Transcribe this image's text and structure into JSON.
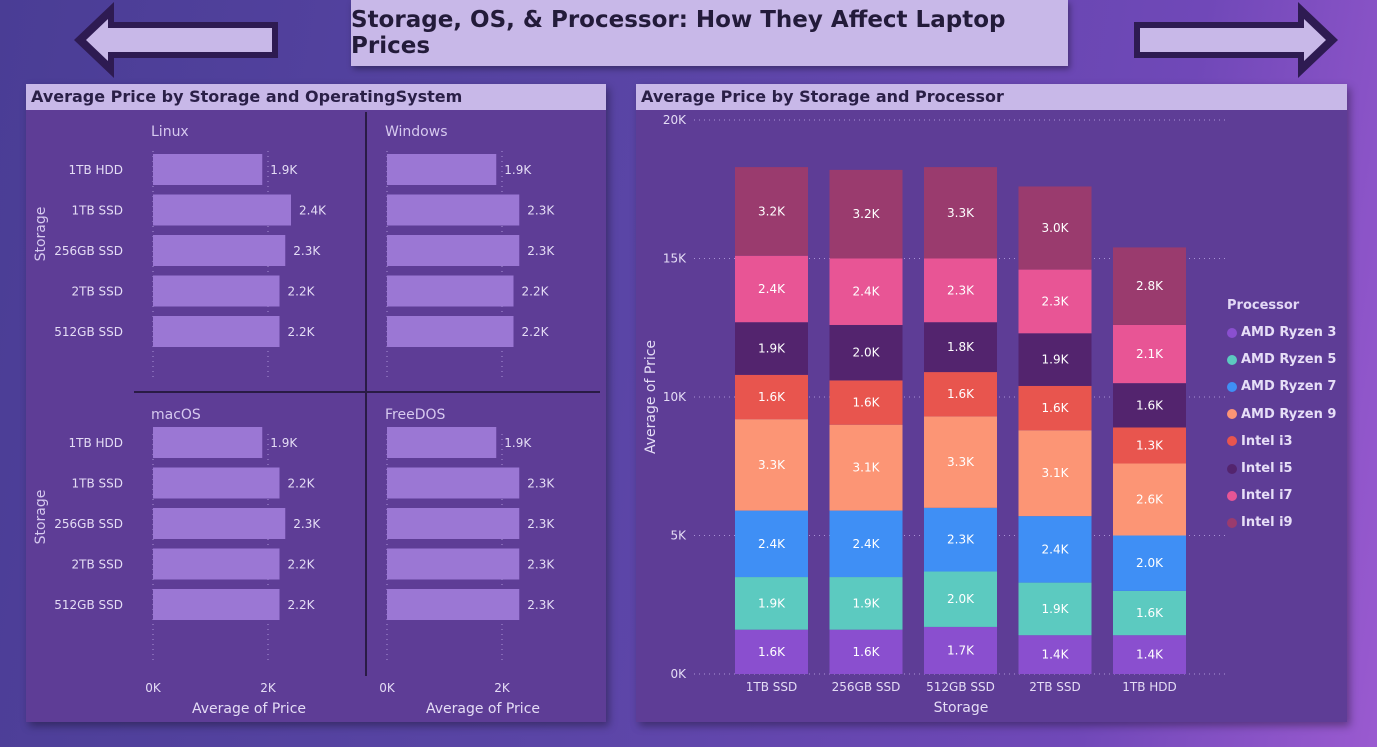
{
  "page": {
    "title": "Storage, OS, & Processor: How They Affect Laptop Prices",
    "nav": {
      "back_icon": "arrow-left-icon",
      "forward_icon": "arrow-right-icon"
    }
  },
  "colors": {
    "bar": "#9b77d4",
    "AMD Ryzen 3": "#8a4fcf",
    "AMD Ryzen 5": "#5ccac0",
    "AMD Ryzen 7": "#3f8ff5",
    "AMD Ryzen 9": "#fc9575",
    "Intel i3": "#e8554e",
    "Intel i5": "#53246e",
    "Intel i7": "#e85595",
    "Intel i9": "#9a3b6e"
  },
  "chart_data": [
    {
      "type": "bar",
      "orientation": "horizontal",
      "title": "Average Price by Storage and OperatingSystem",
      "xlabel": "Average of Price",
      "ylabel": "Storage",
      "xlim": [
        0,
        2600
      ],
      "xticks": [
        "0K",
        "2K"
      ],
      "grid": true,
      "panels": [
        {
          "name": "Linux",
          "categories": [
            "1TB HDD",
            "1TB SSD",
            "256GB SSD",
            "2TB SSD",
            "512GB SSD"
          ],
          "values": [
            1900,
            2400,
            2300,
            2200,
            2200
          ],
          "labels": [
            "1.9K",
            "2.4K",
            "2.3K",
            "2.2K",
            "2.2K"
          ]
        },
        {
          "name": "Windows",
          "categories": [
            "1TB HDD",
            "1TB SSD",
            "256GB SSD",
            "2TB SSD",
            "512GB SSD"
          ],
          "values": [
            1900,
            2300,
            2300,
            2200,
            2200
          ],
          "labels": [
            "1.9K",
            "2.3K",
            "2.3K",
            "2.2K",
            "2.2K"
          ]
        },
        {
          "name": "macOS",
          "categories": [
            "1TB HDD",
            "1TB SSD",
            "256GB SSD",
            "2TB SSD",
            "512GB SSD"
          ],
          "values": [
            1900,
            2200,
            2300,
            2200,
            2200
          ],
          "labels": [
            "1.9K",
            "2.2K",
            "2.3K",
            "2.2K",
            "2.2K"
          ]
        },
        {
          "name": "FreeDOS",
          "categories": [
            "1TB HDD",
            "1TB SSD",
            "256GB SSD",
            "2TB SSD",
            "512GB SSD"
          ],
          "values": [
            1900,
            2300,
            2300,
            2300,
            2300
          ],
          "labels": [
            "1.9K",
            "2.3K",
            "2.3K",
            "2.3K",
            "2.3K"
          ]
        }
      ]
    },
    {
      "type": "bar",
      "stacked": true,
      "title": "Average Price by Storage and Processor",
      "xlabel": "Storage",
      "ylabel": "Average of Price",
      "ylim": [
        0,
        20000
      ],
      "yticks": [
        "0K",
        "5K",
        "10K",
        "15K",
        "20K"
      ],
      "grid": true,
      "legend_title": "Processor",
      "legend_position": "right",
      "categories": [
        "1TB SSD",
        "256GB SSD",
        "512GB SSD",
        "2TB SSD",
        "1TB HDD"
      ],
      "series": [
        {
          "name": "AMD Ryzen 3",
          "values": [
            1600,
            1600,
            1700,
            1400,
            1400
          ],
          "labels": [
            "1.6K",
            "1.6K",
            "1.7K",
            "1.4K",
            "1.4K"
          ]
        },
        {
          "name": "AMD Ryzen 5",
          "values": [
            1900,
            1900,
            2000,
            1900,
            1600
          ],
          "labels": [
            "1.9K",
            "1.9K",
            "2.0K",
            "1.9K",
            "1.6K"
          ]
        },
        {
          "name": "AMD Ryzen 7",
          "values": [
            2400,
            2400,
            2300,
            2400,
            2000
          ],
          "labels": [
            "2.4K",
            "2.4K",
            "2.3K",
            "2.4K",
            "2.0K"
          ]
        },
        {
          "name": "AMD Ryzen 9",
          "values": [
            3300,
            3100,
            3300,
            3100,
            2600
          ],
          "labels": [
            "3.3K",
            "3.1K",
            "3.3K",
            "3.1K",
            "2.6K"
          ]
        },
        {
          "name": "Intel i3",
          "values": [
            1600,
            1600,
            1600,
            1600,
            1300
          ],
          "labels": [
            "1.6K",
            "1.6K",
            "1.6K",
            "1.6K",
            "1.3K"
          ]
        },
        {
          "name": "Intel i5",
          "values": [
            1900,
            2000,
            1800,
            1900,
            1600
          ],
          "labels": [
            "1.9K",
            "2.0K",
            "1.8K",
            "1.9K",
            "1.6K"
          ]
        },
        {
          "name": "Intel i7",
          "values": [
            2400,
            2400,
            2300,
            2300,
            2100
          ],
          "labels": [
            "2.4K",
            "2.4K",
            "2.3K",
            "2.3K",
            "2.1K"
          ]
        },
        {
          "name": "Intel i9",
          "values": [
            3200,
            3200,
            3300,
            3000,
            2800
          ],
          "labels": [
            "3.2K",
            "3.2K",
            "3.3K",
            "3.0K",
            "2.8K"
          ]
        }
      ]
    }
  ]
}
